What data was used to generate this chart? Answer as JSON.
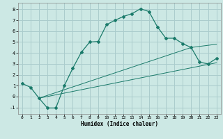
{
  "xlabel": "Humidex (Indice chaleur)",
  "bg_color": "#cce8e4",
  "grid_color": "#aacccc",
  "line_color": "#1a7a6a",
  "xlim": [
    -0.5,
    23.5
  ],
  "ylim": [
    -1.6,
    8.6
  ],
  "xticks": [
    0,
    1,
    2,
    3,
    4,
    5,
    6,
    7,
    8,
    9,
    10,
    11,
    12,
    13,
    14,
    15,
    16,
    17,
    18,
    19,
    20,
    21,
    22,
    23
  ],
  "yticks": [
    -1,
    0,
    1,
    2,
    3,
    4,
    5,
    6,
    7,
    8
  ],
  "curve1_x": [
    0,
    1,
    2,
    3,
    4,
    5,
    6,
    7,
    8,
    9,
    10,
    11,
    12,
    13,
    14,
    15,
    16,
    17,
    18,
    19,
    20,
    21,
    22,
    23
  ],
  "curve1_y": [
    1.2,
    0.85,
    -0.15,
    -1.05,
    -1.05,
    1.0,
    2.6,
    4.05,
    5.0,
    5.05,
    6.6,
    7.0,
    7.35,
    7.6,
    8.05,
    7.8,
    6.4,
    5.35,
    5.35,
    4.85,
    4.5,
    3.15,
    3.0,
    3.5
  ],
  "curve2_x": [
    2,
    20,
    23
  ],
  "curve2_y": [
    -0.15,
    4.5,
    4.8
  ],
  "curve3_x": [
    2,
    23
  ],
  "curve3_y": [
    -0.15,
    3.1
  ]
}
